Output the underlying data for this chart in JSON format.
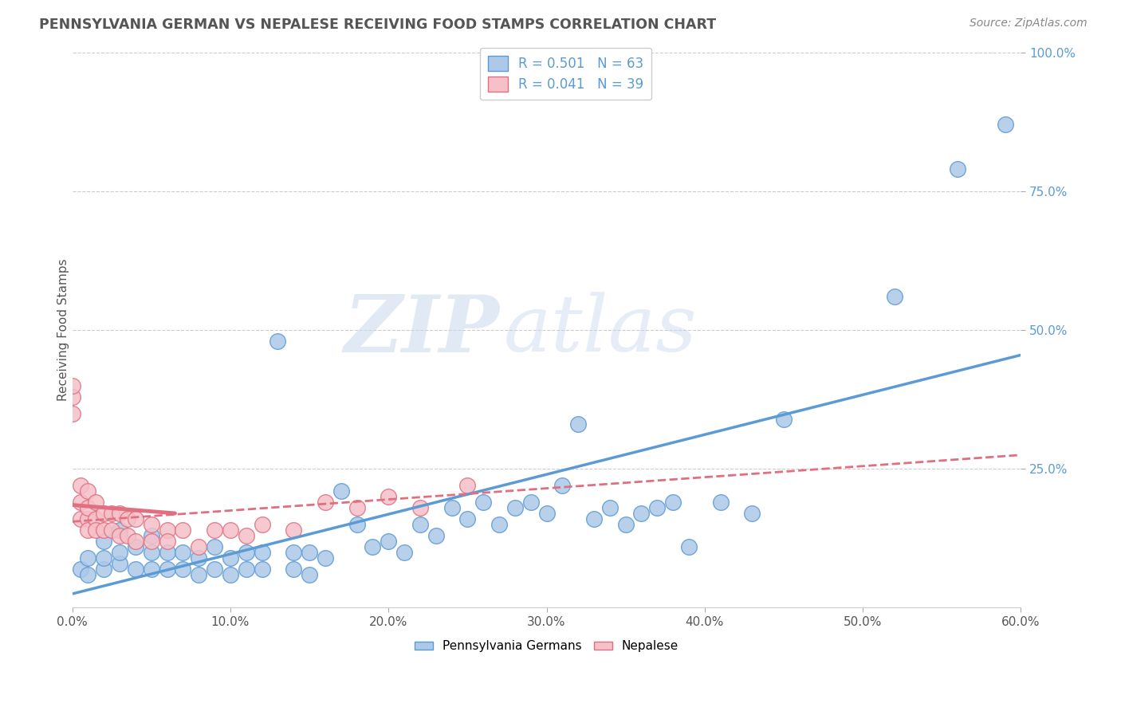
{
  "title": "PENNSYLVANIA GERMAN VS NEPALESE RECEIVING FOOD STAMPS CORRELATION CHART",
  "source": "Source: ZipAtlas.com",
  "ylabel": "Receiving Food Stamps",
  "xlim": [
    0.0,
    0.6
  ],
  "ylim": [
    0.0,
    1.0
  ],
  "xticks": [
    0.0,
    0.1,
    0.2,
    0.3,
    0.4,
    0.5,
    0.6
  ],
  "xtick_labels": [
    "0.0%",
    "10.0%",
    "20.0%",
    "30.0%",
    "40.0%",
    "50.0%",
    "60.0%"
  ],
  "yticks": [
    0.25,
    0.5,
    0.75,
    1.0
  ],
  "ytick_labels_right": [
    "25.0%",
    "50.0%",
    "75.0%",
    "100.0%"
  ],
  "blue_R": 0.501,
  "blue_N": 63,
  "pink_R": 0.041,
  "pink_N": 39,
  "blue_color": "#adc8e8",
  "blue_edge_color": "#5b9bd5",
  "pink_color": "#f5c0c8",
  "pink_edge_color": "#e07080",
  "watermark_zip": "ZIP",
  "watermark_atlas": "atlas",
  "background_color": "#ffffff",
  "grid_color": "#cccccc",
  "blue_scatter_x": [
    0.005,
    0.01,
    0.01,
    0.02,
    0.02,
    0.02,
    0.03,
    0.03,
    0.03,
    0.04,
    0.04,
    0.05,
    0.05,
    0.05,
    0.06,
    0.06,
    0.07,
    0.07,
    0.08,
    0.08,
    0.09,
    0.09,
    0.1,
    0.1,
    0.11,
    0.11,
    0.12,
    0.12,
    0.13,
    0.14,
    0.14,
    0.15,
    0.15,
    0.16,
    0.17,
    0.18,
    0.19,
    0.2,
    0.21,
    0.22,
    0.23,
    0.24,
    0.25,
    0.26,
    0.27,
    0.28,
    0.29,
    0.3,
    0.31,
    0.32,
    0.33,
    0.34,
    0.35,
    0.36,
    0.37,
    0.38,
    0.39,
    0.41,
    0.43,
    0.45,
    0.52,
    0.56,
    0.59
  ],
  "blue_scatter_y": [
    0.07,
    0.06,
    0.09,
    0.07,
    0.09,
    0.12,
    0.08,
    0.1,
    0.14,
    0.07,
    0.11,
    0.07,
    0.1,
    0.13,
    0.07,
    0.1,
    0.07,
    0.1,
    0.06,
    0.09,
    0.07,
    0.11,
    0.06,
    0.09,
    0.07,
    0.1,
    0.07,
    0.1,
    0.48,
    0.07,
    0.1,
    0.06,
    0.1,
    0.09,
    0.21,
    0.15,
    0.11,
    0.12,
    0.1,
    0.15,
    0.13,
    0.18,
    0.16,
    0.19,
    0.15,
    0.18,
    0.19,
    0.17,
    0.22,
    0.33,
    0.16,
    0.18,
    0.15,
    0.17,
    0.18,
    0.19,
    0.11,
    0.19,
    0.17,
    0.34,
    0.56,
    0.79,
    0.87
  ],
  "pink_scatter_x": [
    0.0,
    0.0,
    0.0,
    0.005,
    0.005,
    0.005,
    0.01,
    0.01,
    0.01,
    0.01,
    0.015,
    0.015,
    0.015,
    0.02,
    0.02,
    0.025,
    0.025,
    0.03,
    0.03,
    0.035,
    0.035,
    0.04,
    0.04,
    0.05,
    0.05,
    0.06,
    0.06,
    0.07,
    0.08,
    0.09,
    0.1,
    0.11,
    0.12,
    0.14,
    0.16,
    0.18,
    0.2,
    0.22,
    0.25
  ],
  "pink_scatter_y": [
    0.35,
    0.38,
    0.4,
    0.16,
    0.19,
    0.22,
    0.16,
    0.18,
    0.21,
    0.14,
    0.16,
    0.19,
    0.14,
    0.17,
    0.14,
    0.17,
    0.14,
    0.17,
    0.13,
    0.16,
    0.13,
    0.16,
    0.12,
    0.15,
    0.12,
    0.14,
    0.12,
    0.14,
    0.11,
    0.14,
    0.14,
    0.13,
    0.15,
    0.14,
    0.19,
    0.18,
    0.2,
    0.18,
    0.22
  ],
  "blue_trend_x": [
    0.0,
    0.6
  ],
  "blue_trend_y": [
    0.025,
    0.455
  ],
  "pink_trend_x": [
    0.0,
    0.6
  ],
  "pink_trend_y": [
    0.155,
    0.275
  ]
}
